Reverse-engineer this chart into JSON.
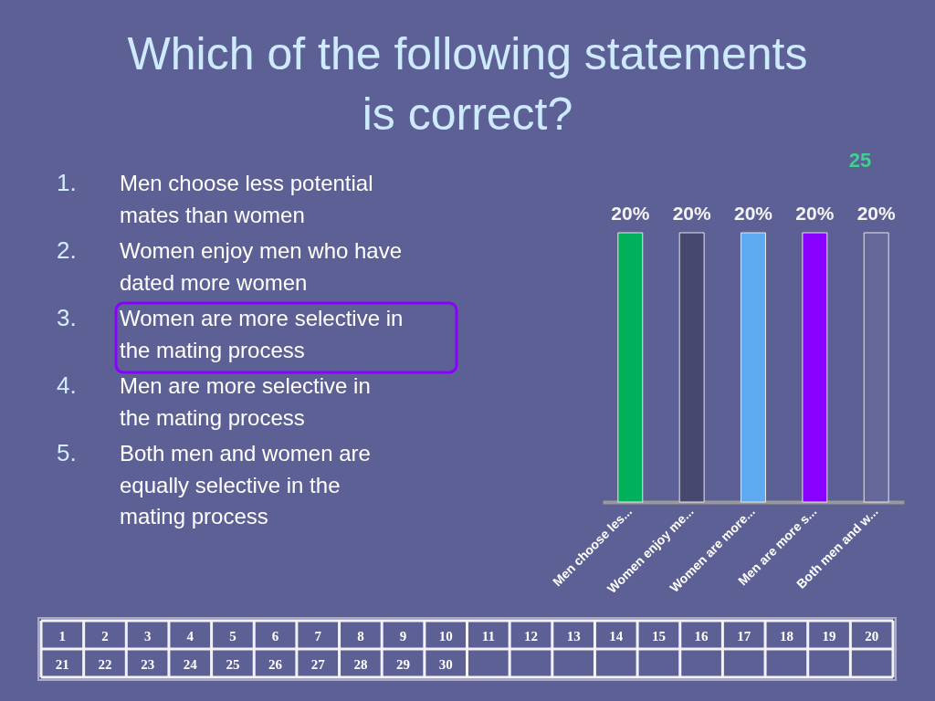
{
  "chart_data": {
    "type": "bar",
    "title": "Which of the following statements is correct?",
    "categories": [
      "Men choose les...",
      "Women enjoy me...",
      "Women are more...",
      "Men are more s...",
      "Both men and w..."
    ],
    "values": [
      20,
      20,
      20,
      20,
      20
    ],
    "colors": [
      "#00b05a",
      "#47486f",
      "#5eaaf0",
      "#8800ff",
      "#66689a"
    ],
    "value_labels": [
      "20%",
      "20%",
      "20%",
      "20%",
      "20%"
    ],
    "annotations": [
      "1.",
      "Men choose less potential mates than women",
      "2.",
      "Women enjoy men who have dated more women",
      "3.",
      "Women are more selective in the mating process",
      "4.",
      "Men are more selective in the mating process",
      "5.",
      "Both men and women are equally selective in the mating process",
      "25",
      "1",
      "2",
      "3",
      "4",
      "5",
      "6",
      "7",
      "8",
      "9",
      "10",
      "11",
      "12",
      "13",
      "14",
      "15",
      "16",
      "17",
      "18",
      "19",
      "20",
      "21",
      "22",
      "23",
      "24",
      "25",
      "26",
      "27",
      "28",
      "29",
      "30"
    ]
  }
}
